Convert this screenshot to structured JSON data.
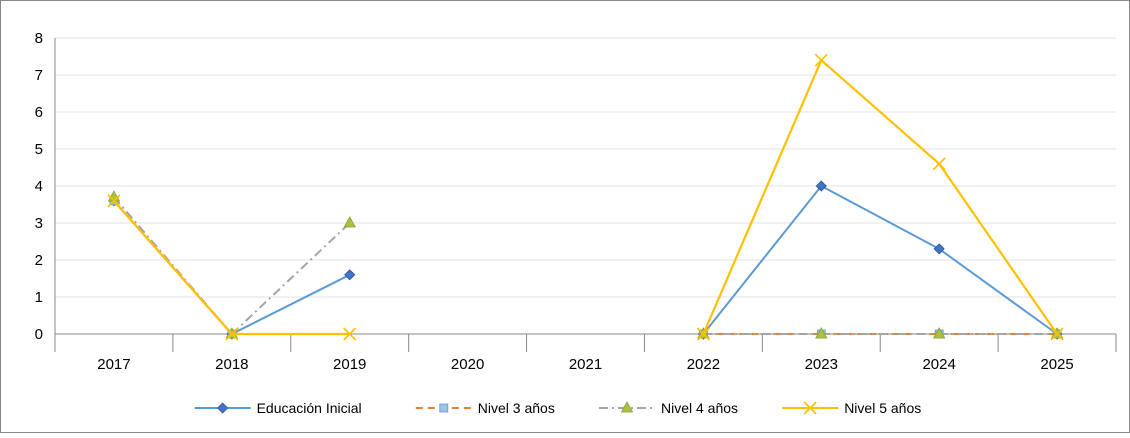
{
  "chart_data": {
    "type": "line",
    "categories": [
      "2017",
      "2018",
      "2019",
      "2020",
      "2021",
      "2022",
      "2023",
      "2024",
      "2025"
    ],
    "ylim": [
      0,
      8
    ],
    "yticks": [
      0,
      1,
      2,
      3,
      4,
      5,
      6,
      7,
      8
    ],
    "ytick_labels": [
      "0",
      "1",
      "2",
      "3",
      "4",
      "5",
      "6",
      "7",
      "8"
    ],
    "grid": true,
    "legend_position": "bottom",
    "series": [
      {
        "name": "Educación Inicial",
        "values": [
          3.6,
          0,
          1.6,
          null,
          null,
          0,
          4.0,
          2.3,
          0
        ],
        "color": "#4472C4",
        "line_color": "#5B9BD5",
        "marker": "diamond",
        "dash": "solid"
      },
      {
        "name": "Nivel 3 años",
        "values": [
          3.6,
          0,
          null,
          null,
          null,
          0,
          0,
          0,
          0
        ],
        "color": "#9DC3E6",
        "line_color": "#ED7D31",
        "marker": "square",
        "dash": "dash"
      },
      {
        "name": "Nivel 4 años",
        "values": [
          3.7,
          0,
          3.0,
          null,
          null,
          0,
          0,
          0,
          0
        ],
        "color": "#A9C23F",
        "line_color": "#A5A5A5",
        "marker": "triangle",
        "dash": "dashdot"
      },
      {
        "name": "Nivel 5 años",
        "values": [
          3.6,
          0,
          0,
          null,
          null,
          0,
          7.4,
          4.6,
          0
        ],
        "color": "#FFC000",
        "line_color": "#FFC000",
        "marker": "x",
        "dash": "solid"
      }
    ]
  }
}
